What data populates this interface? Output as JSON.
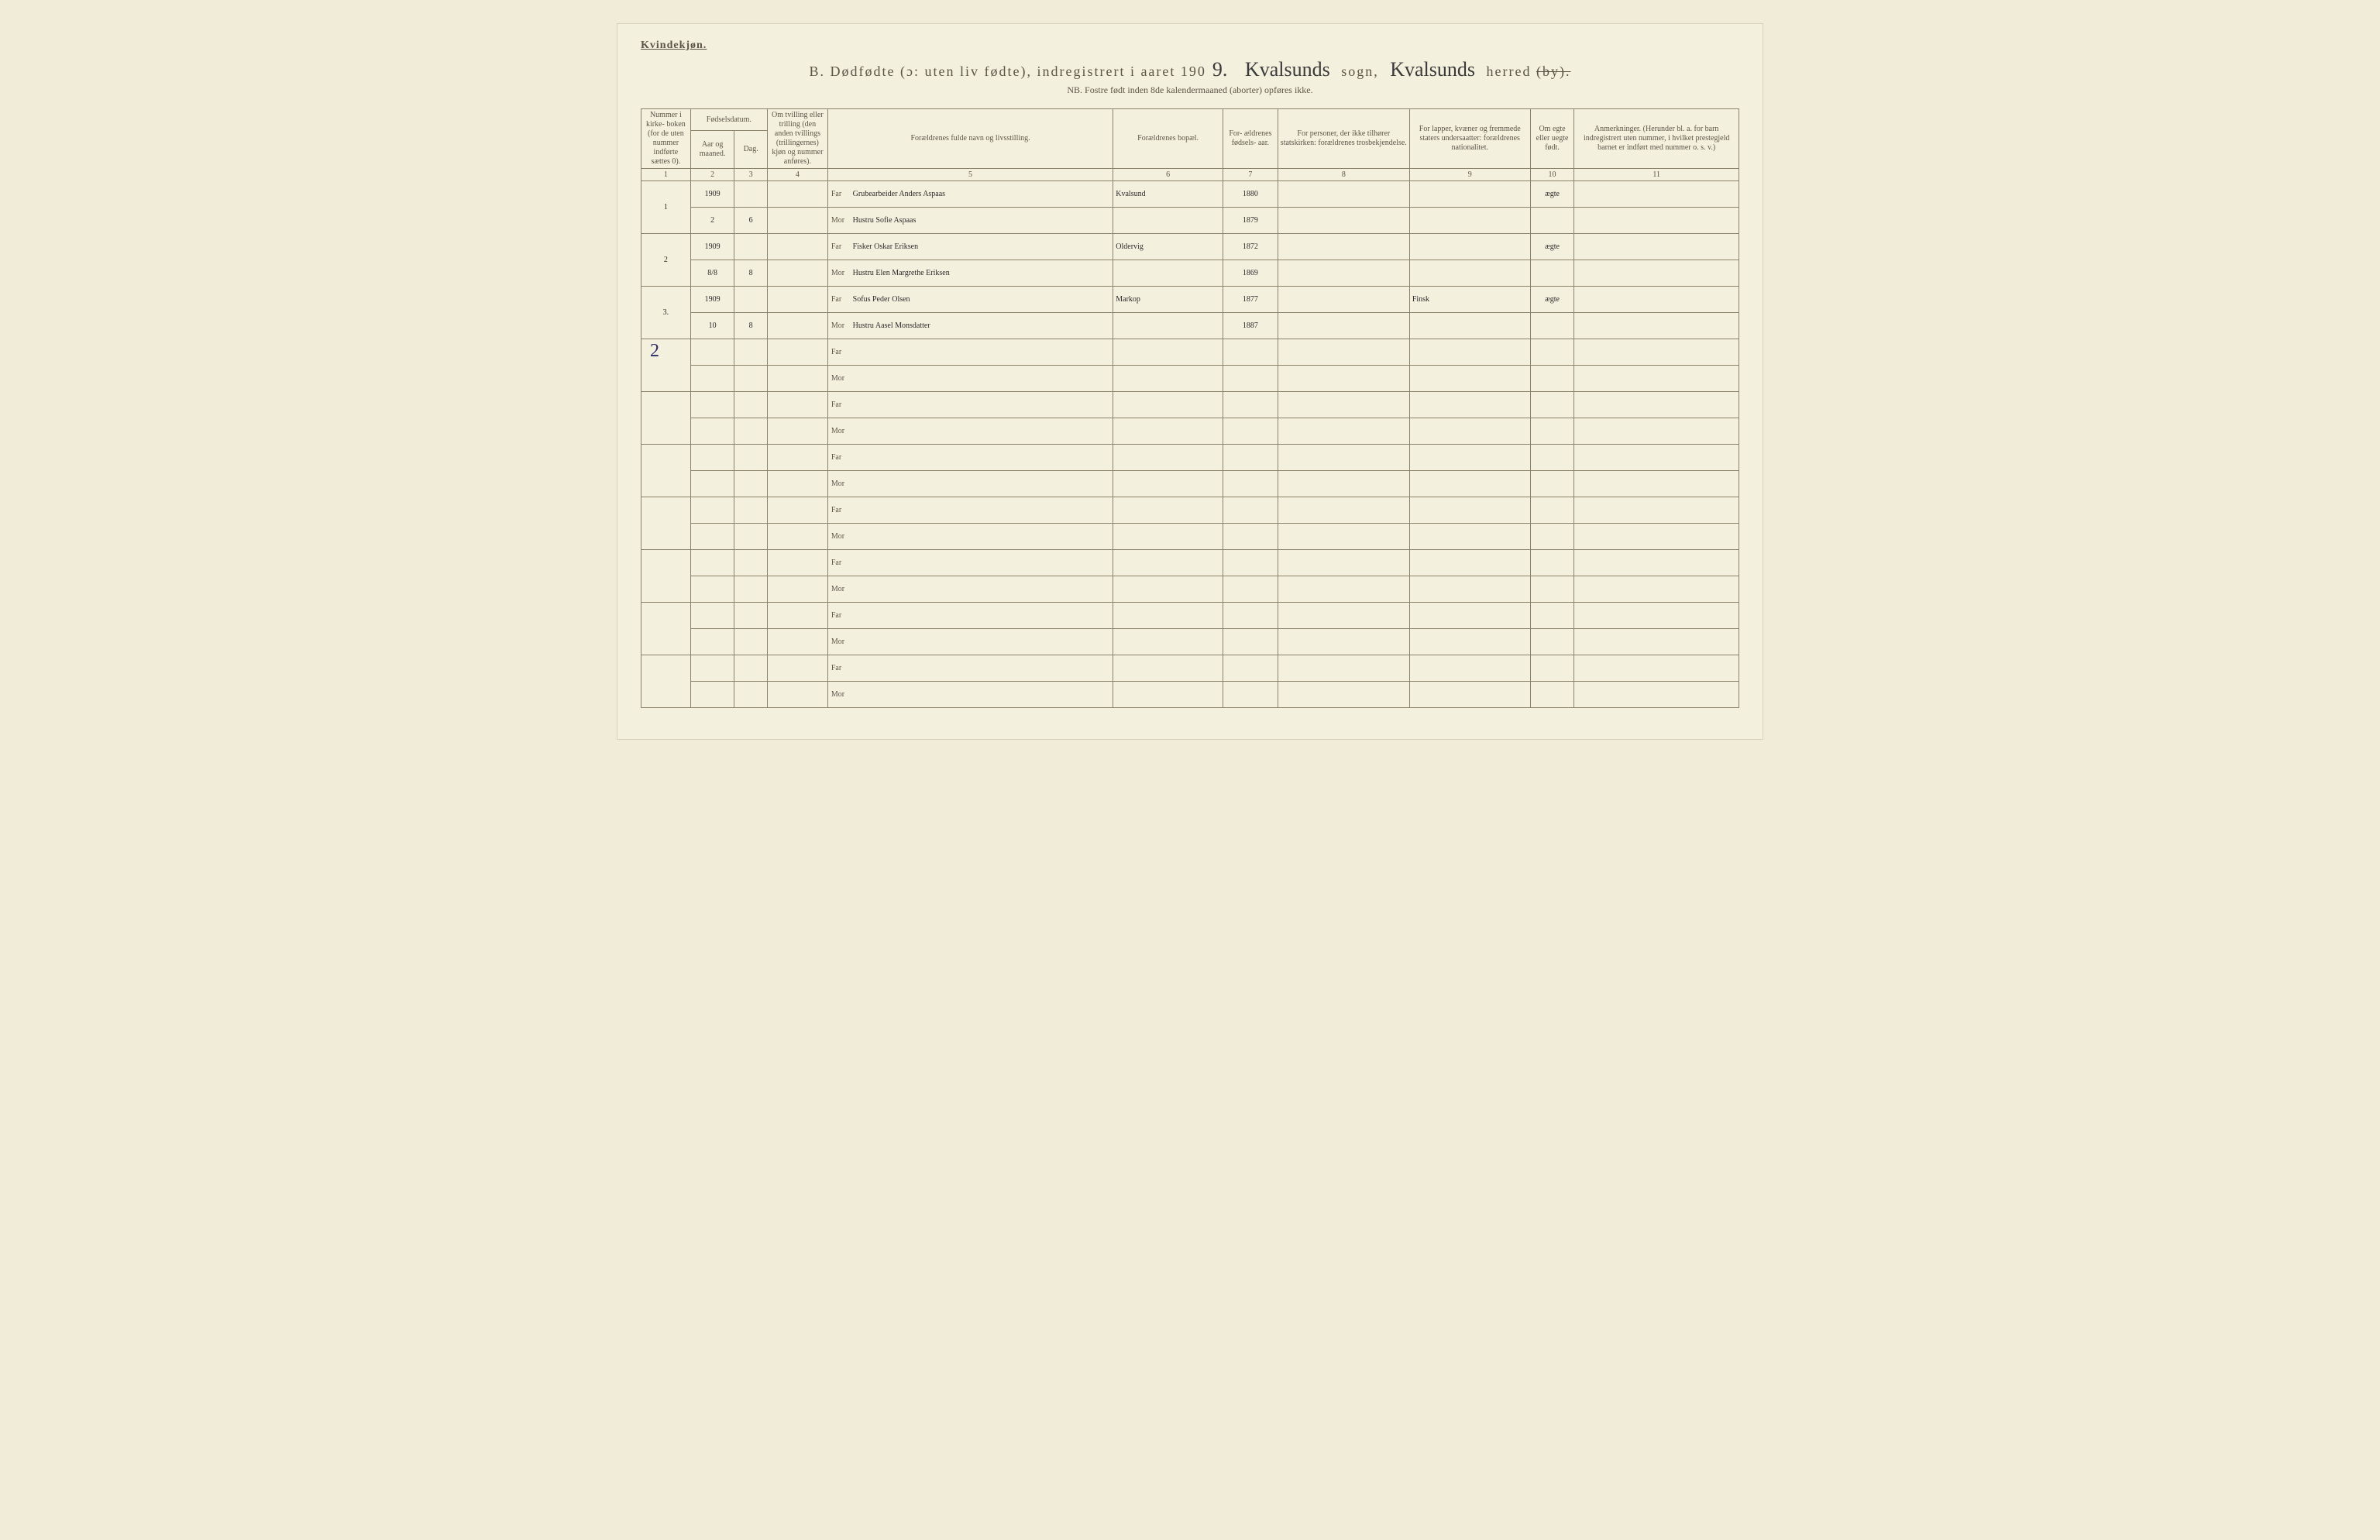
{
  "header": {
    "gender_label": "Kvindekjøn.",
    "title_prefix": "B.  Dødfødte (ɔ: uten liv fødte), indregistrert i aaret 190",
    "year_suffix": "9.",
    "sogn_hw": "Kvalsunds",
    "sogn_label": "sogn,",
    "herred_hw": "Kvalsunds",
    "herred_label": "herred",
    "by_strike": "(by).",
    "subtitle": "NB.  Fostre født inden 8de kalendermaaned (aborter) opføres ikke."
  },
  "columns": {
    "c1": "Nummer i kirke- boken (for de uten nummer indførte sættes 0).",
    "c2_group": "Fødselsdatum.",
    "c2": "Aar og maaned.",
    "c3": "Dag.",
    "c4": "Om tvilling eller trilling (den anden tvillings (trillingernes) kjøn og nummer anføres).",
    "c5": "Forældrenes fulde navn og livsstilling.",
    "c6": "Forældrenes bopæl.",
    "c7": "For- ældrenes fødsels- aar.",
    "c8": "For personer, der ikke tilhører statskirken: forældrenes trosbekjendelse.",
    "c9": "For lapper, kvæner og fremmede staters undersaatter: forældrenes nationalitet.",
    "c10": "Om egte eller uegte født.",
    "c11": "Anmerkninger. (Herunder bl. a. for barn indregistrert uten nummer, i hvilket prestegjeld barnet er indført med nummer o. s. v.)",
    "nums": [
      "1",
      "2",
      "3",
      "4",
      "5",
      "6",
      "7",
      "8",
      "9",
      "10",
      "11"
    ]
  },
  "role_labels": {
    "far": "Far",
    "mor": "Mor"
  },
  "rows": [
    {
      "num": "1",
      "far": {
        "year_month": "1909",
        "day": "",
        "twin": "",
        "name": "Grubearbeider Anders Aspaas",
        "bopael": "Kvalsund",
        "birthyear": "1880",
        "tros": "",
        "nat": "",
        "egte": "ægte",
        "anm": ""
      },
      "mor": {
        "year_month": "2",
        "day": "6",
        "twin": "",
        "name": "Hustru Sofie Aspaas",
        "bopael": "",
        "birthyear": "1879",
        "tros": "",
        "nat": "",
        "egte": "",
        "anm": ""
      }
    },
    {
      "num": "2",
      "far": {
        "year_month": "1909",
        "day": "",
        "twin": "",
        "name": "Fisker Oskar Eriksen",
        "bopael": "Oldervig",
        "birthyear": "1872",
        "tros": "",
        "nat": "",
        "egte": "ægte",
        "anm": ""
      },
      "mor": {
        "year_month": "8/8",
        "day": "8",
        "twin": "",
        "name": "Hustru Elen Margrethe Eriksen",
        "bopael": "",
        "birthyear": "1869",
        "tros": "",
        "nat": "",
        "egte": "",
        "anm": ""
      }
    },
    {
      "num": "3.",
      "far": {
        "year_month": "1909",
        "day": "",
        "twin": "",
        "name": "Sofus Peder Olsen",
        "bopael": "Markop",
        "birthyear": "1877",
        "tros": "",
        "nat": "Finsk",
        "egte": "ægte",
        "anm": ""
      },
      "mor": {
        "year_month": "10",
        "day": "8",
        "twin": "",
        "name": "Hustru Aasel Monsdatter",
        "bopael": "",
        "birthyear": "1887",
        "tros": "",
        "nat": "",
        "egte": "",
        "anm": ""
      }
    },
    {
      "num": "",
      "far": {},
      "mor": {}
    },
    {
      "num": "",
      "far": {},
      "mor": {}
    },
    {
      "num": "",
      "far": {},
      "mor": {}
    },
    {
      "num": "",
      "far": {},
      "mor": {}
    },
    {
      "num": "",
      "far": {},
      "mor": {}
    },
    {
      "num": "",
      "far": {},
      "mor": {}
    },
    {
      "num": "",
      "far": {},
      "mor": {}
    }
  ],
  "margin_note": "2",
  "style": {
    "page_bg": "#f4f0de",
    "body_bg": "#f0ecd8",
    "border_color": "#8a836a",
    "text_color": "#5a5548",
    "handwriting_color": "#2a2a2a",
    "handwriting_font": "Brush Script MT",
    "print_font": "Georgia",
    "title_fontsize": 18,
    "subtitle_fontsize": 12,
    "header_fontsize": 10,
    "cell_fontsize_hw": 20
  }
}
